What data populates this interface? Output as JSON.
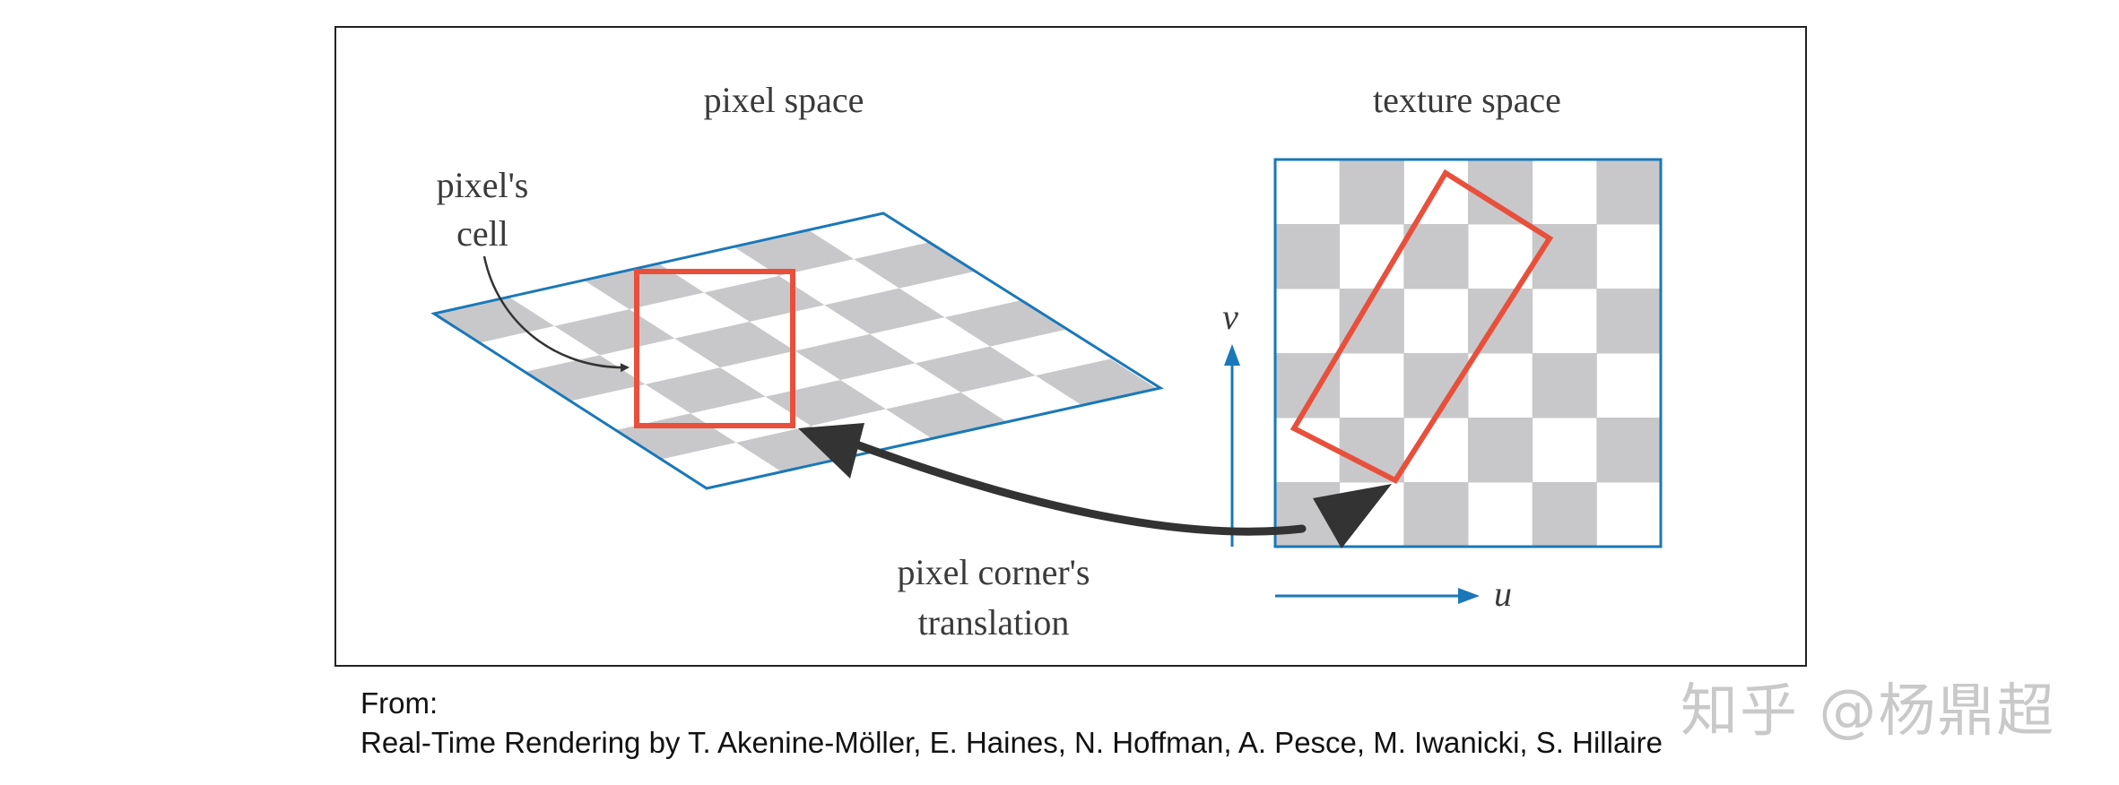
{
  "diagram": {
    "labels": {
      "pixel_space": "pixel space",
      "texture_space": "texture space",
      "pixels_cell_line1": "pixel's",
      "pixels_cell_line2": "cell",
      "corner_line1": "pixel corner's",
      "corner_line2": "translation",
      "axis_v": "v",
      "axis_u": "u"
    },
    "colors": {
      "grid_blue": "#1a78b8",
      "highlight_red": "#e8503c",
      "checker_gray": "#c8c8ca",
      "arrow_dark": "#333333"
    },
    "checker": {
      "columns": 6,
      "rows": 6
    }
  },
  "caption": {
    "from": "From:",
    "source": "Real-Time Rendering by T. Akenine-Möller, E. Haines, N. Hoffman, A. Pesce, M. Iwanicki, S. Hillaire"
  },
  "watermark": "知乎 @杨鼎超"
}
